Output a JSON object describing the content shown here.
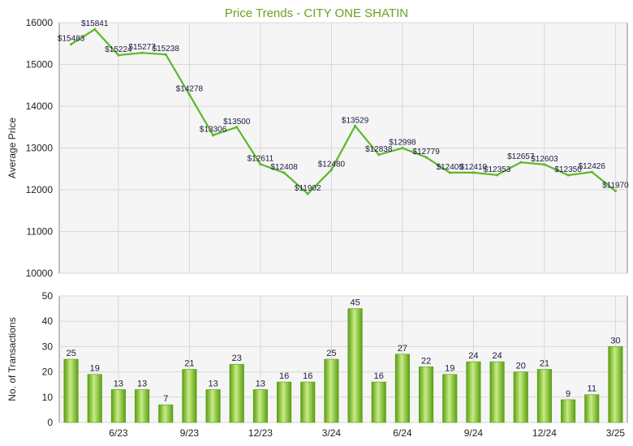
{
  "colors": {
    "title": "#6aa121",
    "line": "#5cb82a",
    "bar_light": "#c8ec86",
    "bar_dark": "#5a9e12",
    "grid": "#d8d8d8",
    "plot_bg": "#f5f5f5",
    "axis": "#888888"
  },
  "chart_data": [
    {
      "type": "line",
      "title": "Price Trends - CITY ONE SHATIN",
      "ylabel": "Average Price",
      "ylim": [
        10000,
        16000
      ],
      "yticks": [
        10000,
        11000,
        12000,
        13000,
        14000,
        15000,
        16000
      ],
      "grid": true,
      "point_labels": [
        "$15483",
        "$15841",
        "$15224",
        "$15277",
        "$15238",
        "$14278",
        "$13306",
        "$13500",
        "$12611",
        "$12408",
        "$11902",
        "$12480",
        "$13529",
        "$12838",
        "$12998",
        "$12779",
        "$12409",
        "$12410",
        "$12353",
        "$12657",
        "$12603",
        "$12350",
        "$12426",
        "$11970"
      ],
      "values": [
        15483,
        15841,
        15224,
        15277,
        15238,
        14278,
        13306,
        13500,
        12611,
        12408,
        11902,
        12480,
        13529,
        12838,
        12998,
        12779,
        12409,
        12410,
        12353,
        12657,
        12603,
        12350,
        12426,
        11970
      ]
    },
    {
      "type": "bar",
      "ylabel": "No. of Transactions",
      "ylim": [
        0,
        50
      ],
      "yticks": [
        0,
        10,
        20,
        30,
        40,
        50
      ],
      "grid": true,
      "x_tick_labels": [
        "6/23",
        "9/23",
        "12/23",
        "3/24",
        "6/24",
        "9/24",
        "12/24",
        "3/25"
      ],
      "x_tick_positions": [
        2,
        5,
        8,
        11,
        14,
        17,
        20,
        23
      ],
      "values": [
        25,
        19,
        13,
        13,
        7,
        21,
        13,
        23,
        13,
        16,
        16,
        25,
        45,
        16,
        27,
        22,
        19,
        24,
        24,
        20,
        21,
        9,
        11,
        30
      ]
    }
  ]
}
